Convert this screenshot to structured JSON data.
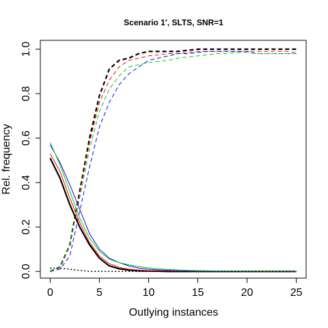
{
  "chart_data": {
    "type": "line",
    "title": "Scenario 1', SLTS, SNR=1",
    "xlabel": "Outlying instances",
    "ylabel": "Rel. frequency",
    "xlim": [
      -1,
      26
    ],
    "ylim": [
      -0.03,
      1.04
    ],
    "xticks": [
      0,
      5,
      10,
      15,
      20,
      25
    ],
    "yticks": [
      0.0,
      0.2,
      0.4,
      0.6,
      0.8,
      1.0
    ],
    "xtick_labels": [
      "0",
      "5",
      "10",
      "15",
      "20",
      "25"
    ],
    "ytick_labels": [
      "0.0",
      "0.2",
      "0.4",
      "0.6",
      "0.8",
      "1.0"
    ],
    "grid": false,
    "x": [
      0,
      1,
      2,
      3,
      4,
      5,
      6,
      7,
      8,
      9,
      10,
      11,
      12,
      13,
      14,
      15,
      16,
      17,
      18,
      19,
      20,
      21,
      22,
      23,
      24,
      25
    ],
    "series": [
      {
        "color": "#000000",
        "style": "dashed",
        "width": 2.2,
        "values": [
          0.0,
          0.02,
          0.12,
          0.36,
          0.6,
          0.79,
          0.91,
          0.95,
          0.96,
          0.98,
          0.99,
          0.99,
          0.99,
          0.99,
          0.995,
          1.0,
          1.0,
          1.0,
          1.0,
          1.0,
          1.0,
          1.0,
          1.0,
          1.0,
          1.0,
          1.0
        ]
      },
      {
        "color": "#ff0000",
        "style": "dashed",
        "width": 1,
        "values": [
          0.0,
          0.02,
          0.12,
          0.35,
          0.58,
          0.76,
          0.86,
          0.92,
          0.95,
          0.96,
          0.97,
          0.975,
          0.98,
          0.98,
          0.985,
          0.99,
          0.99,
          0.99,
          0.99,
          0.99,
          0.99,
          0.99,
          0.99,
          0.99,
          0.99,
          0.985
        ]
      },
      {
        "color": "#0000ff",
        "style": "dashed",
        "width": 1,
        "values": [
          0.0,
          0.01,
          0.07,
          0.27,
          0.47,
          0.65,
          0.76,
          0.84,
          0.89,
          0.92,
          0.95,
          0.96,
          0.97,
          0.98,
          0.98,
          0.985,
          0.99,
          0.99,
          0.99,
          0.99,
          0.99,
          0.98,
          0.98,
          0.98,
          0.98,
          0.98
        ]
      },
      {
        "color": "#00cc00",
        "style": "dashed",
        "width": 1,
        "values": [
          0.0,
          0.02,
          0.12,
          0.33,
          0.55,
          0.72,
          0.82,
          0.88,
          0.92,
          0.93,
          0.94,
          0.945,
          0.95,
          0.96,
          0.965,
          0.97,
          0.975,
          0.98,
          0.98,
          0.985,
          0.985,
          0.98,
          0.98,
          0.98,
          0.98,
          0.98
        ]
      },
      {
        "color": "#000000",
        "style": "solid",
        "width": 2.2,
        "values": [
          0.51,
          0.42,
          0.3,
          0.2,
          0.12,
          0.06,
          0.025,
          0.012,
          0.006,
          0.003,
          0.002,
          0.001,
          0.0,
          0.0,
          0.0,
          0.0,
          0.0,
          0.0,
          0.0,
          0.0,
          0.0,
          0.0,
          0.0,
          0.0,
          0.0,
          0.0
        ]
      },
      {
        "color": "#ff0000",
        "style": "solid",
        "width": 1,
        "values": [
          0.53,
          0.45,
          0.33,
          0.22,
          0.13,
          0.07,
          0.035,
          0.018,
          0.01,
          0.006,
          0.004,
          0.003,
          0.002,
          0.001,
          0.001,
          0.0,
          0.0,
          0.0,
          0.0,
          0.0,
          0.0,
          0.0,
          0.0,
          0.0,
          0.0,
          0.0
        ]
      },
      {
        "color": "#0000ff",
        "style": "solid",
        "width": 1,
        "values": [
          0.57,
          0.49,
          0.39,
          0.28,
          0.17,
          0.1,
          0.06,
          0.04,
          0.025,
          0.015,
          0.01,
          0.007,
          0.005,
          0.003,
          0.002,
          0.001,
          0.001,
          0.0,
          0.0,
          0.0,
          0.0,
          0.0,
          0.0,
          0.0,
          0.0,
          0.0
        ]
      },
      {
        "color": "#00cc00",
        "style": "solid",
        "width": 1,
        "values": [
          0.58,
          0.48,
          0.36,
          0.24,
          0.15,
          0.09,
          0.055,
          0.04,
          0.03,
          0.022,
          0.016,
          0.012,
          0.009,
          0.007,
          0.005,
          0.004,
          0.003,
          0.002,
          0.002,
          0.001,
          0.001,
          0.001,
          0.0,
          0.0,
          0.0,
          0.0
        ]
      },
      {
        "color": "#000000",
        "style": "dotted",
        "width": 1.5,
        "values": [
          0.015,
          0.015,
          0.01,
          0.005,
          0.0,
          0.0,
          0.0,
          0.0,
          0.0,
          0.0,
          0.0,
          0.0,
          0.0,
          0.0,
          0.0,
          0.0,
          0.0,
          0.0,
          0.0,
          0.0,
          0.0,
          0.0,
          0.0,
          0.0,
          0.0,
          0.0
        ]
      }
    ]
  }
}
